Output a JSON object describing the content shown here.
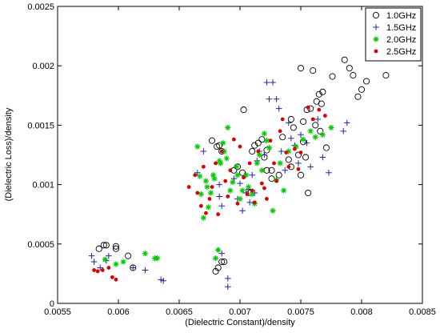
{
  "chart_data": {
    "type": "scatter",
    "title": "",
    "xlabel": "(Dielectric Constant)/density",
    "ylabel": "(Dielectric Loss)/density",
    "xlim": [
      0.0055,
      0.0085
    ],
    "ylim": [
      0,
      0.0025
    ],
    "x_ticks": [
      0.0055,
      0.006,
      0.0065,
      0.007,
      0.0075,
      0.008,
      0.0085
    ],
    "x_tick_labels": [
      "0.0055",
      "0.006",
      "0.0065",
      "0.007",
      "0.0075",
      "0.008",
      "0.0085"
    ],
    "y_ticks": [
      0,
      0.0005,
      0.001,
      0.0015,
      0.002,
      0.0025
    ],
    "y_tick_labels": [
      "0",
      "0.0005",
      "0.001",
      "0.0015",
      "0.002",
      "0.0025"
    ],
    "grid": false,
    "legend_position": "top-right",
    "series": [
      {
        "name": "1.0GHz",
        "marker": "circle-open",
        "color": "#000000",
        "x": [
          0.00584,
          0.00588,
          0.0059,
          0.00598,
          0.00598,
          0.00608,
          0.00612,
          0.00677,
          0.00681,
          0.00683,
          0.00685,
          0.0068,
          0.00687,
          0.00685,
          0.00682,
          0.00698,
          0.00695,
          0.00703,
          0.00702,
          0.0071,
          0.00708,
          0.00712,
          0.00715,
          0.00718,
          0.00722,
          0.0072,
          0.00722,
          0.00726,
          0.00726,
          0.00732,
          0.00735,
          0.00742,
          0.0074,
          0.00744,
          0.00742,
          0.00748,
          0.0075,
          0.00754,
          0.00756,
          0.00752,
          0.00758,
          0.00755,
          0.00752,
          0.0075,
          0.0076,
          0.00763,
          0.00762,
          0.00765,
          0.00766,
          0.00767,
          0.00768,
          0.00771,
          0.00776,
          0.00786,
          0.0079,
          0.00793,
          0.00797,
          0.008,
          0.00804,
          0.0082
        ],
        "y": [
          0.00046,
          0.00049,
          0.00049,
          0.00048,
          0.00046,
          0.0004,
          0.0003,
          0.00137,
          0.00132,
          0.00133,
          0.00128,
          0.00027,
          0.00035,
          0.00035,
          0.0003,
          0.00115,
          0.00112,
          0.00163,
          0.0011,
          0.00128,
          0.00093,
          0.00133,
          0.00135,
          0.00138,
          0.00129,
          0.00123,
          0.00112,
          0.00112,
          0.00105,
          0.00108,
          0.0014,
          0.00155,
          0.00121,
          0.00148,
          0.00115,
          0.00125,
          0.00108,
          0.00123,
          0.00093,
          0.00136,
          0.00164,
          0.00163,
          0.00153,
          0.00198,
          0.00196,
          0.0017,
          0.0015,
          0.00176,
          0.00145,
          0.00168,
          0.00178,
          0.00131,
          0.00191,
          0.00205,
          0.00198,
          0.00192,
          0.00174,
          0.0018,
          0.00187,
          0.00192
        ]
      },
      {
        "name": "1.5GHz",
        "marker": "plus",
        "color": "#2222aa",
        "x": [
          0.00578,
          0.0058,
          0.00585,
          0.0059,
          0.00592,
          0.00612,
          0.00622,
          0.00635,
          0.00637,
          0.00665,
          0.0067,
          0.00683,
          0.00685,
          0.00683,
          0.0069,
          0.0069,
          0.00685,
          0.00695,
          0.00698,
          0.007,
          0.00702,
          0.00705,
          0.00707,
          0.00708,
          0.0071,
          0.00712,
          0.00714,
          0.00716,
          0.0072,
          0.00722,
          0.00724,
          0.00727,
          0.0073,
          0.00732,
          0.00734,
          0.00737,
          0.0074,
          0.00742,
          0.00745,
          0.00748,
          0.0075,
          0.00755,
          0.00758,
          0.00764,
          0.00768,
          0.00773,
          0.00785,
          0.00788
        ],
        "y": [
          0.0004,
          0.00035,
          0.0003,
          0.00036,
          0.0004,
          0.0003,
          0.00028,
          0.0002,
          0.00019,
          0.0011,
          0.00128,
          0.001,
          0.00082,
          0.0009,
          0.00014,
          0.00021,
          0.00042,
          0.00105,
          0.00088,
          0.00101,
          0.00078,
          0.00093,
          0.00096,
          0.00085,
          0.00108,
          0.00093,
          0.0012,
          0.00128,
          0.00125,
          0.00186,
          0.00172,
          0.00186,
          0.00172,
          0.00164,
          0.00128,
          0.00112,
          0.00152,
          0.00139,
          0.00133,
          0.00118,
          0.00142,
          0.00135,
          0.00115,
          0.00155,
          0.00123,
          0.0011,
          0.00145,
          0.00152
        ]
      },
      {
        "name": "2.0GHz",
        "marker": "asterisk",
        "color": "#00cc00",
        "x": [
          0.00589,
          0.00598,
          0.00604,
          0.00622,
          0.0063,
          0.00632,
          0.00665,
          0.00667,
          0.00668,
          0.0067,
          0.00672,
          0.00673,
          0.00674,
          0.00676,
          0.00678,
          0.00679,
          0.0068,
          0.00682,
          0.00683,
          0.00684,
          0.00686,
          0.00687,
          0.00689,
          0.0069,
          0.00692,
          0.00694,
          0.00697,
          0.00698,
          0.007,
          0.00702,
          0.00705,
          0.00707,
          0.0071,
          0.00712,
          0.00714,
          0.00716,
          0.00718,
          0.0072,
          0.00722,
          0.00724,
          0.00727,
          0.0073,
          0.00733,
          0.00736,
          0.0074,
          0.00746,
          0.00752,
          0.00758,
          0.00762,
          0.00768,
          0.00775
        ],
        "y": [
          0.00037,
          0.00033,
          0.00035,
          0.00042,
          0.00038,
          0.00038,
          0.00132,
          0.00107,
          0.00092,
          0.00072,
          0.00103,
          0.00098,
          0.00081,
          0.00093,
          0.00108,
          0.00105,
          0.00038,
          0.00045,
          0.0012,
          0.00118,
          0.00135,
          0.00128,
          0.00122,
          0.00148,
          0.00095,
          0.00102,
          0.00115,
          0.00108,
          0.00088,
          0.00095,
          0.00108,
          0.00098,
          0.00092,
          0.00084,
          0.00118,
          0.00125,
          0.00112,
          0.00143,
          0.00137,
          0.00131,
          0.00078,
          0.00104,
          0.00118,
          0.00095,
          0.00128,
          0.00132,
          0.00138,
          0.00145,
          0.0014,
          0.00142,
          0.00148
        ]
      },
      {
        "name": "2.5GHz",
        "marker": "dot",
        "color": "#dd0000",
        "x": [
          0.0058,
          0.00583,
          0.00587,
          0.00592,
          0.00595,
          0.00598,
          0.00658,
          0.00663,
          0.00665,
          0.00668,
          0.0067,
          0.00672,
          0.00675,
          0.00677,
          0.0068,
          0.00682,
          0.00685,
          0.00688,
          0.0069,
          0.00692,
          0.00695,
          0.00698,
          0.007,
          0.00703,
          0.00706,
          0.00708,
          0.0071,
          0.00712,
          0.00715,
          0.00718,
          0.0072,
          0.00722,
          0.00725,
          0.00728,
          0.0073,
          0.00733,
          0.00735,
          0.00738,
          0.0074,
          0.00745,
          0.00748,
          0.0075,
          0.00756,
          0.0076,
          0.00765,
          0.0077
        ],
        "y": [
          0.00028,
          0.00027,
          0.00028,
          0.0003,
          0.00022,
          0.0002,
          0.00098,
          0.00108,
          0.00093,
          0.00082,
          0.00115,
          0.00076,
          0.00088,
          0.00098,
          0.00118,
          0.00075,
          0.00128,
          0.00103,
          0.0009,
          0.00112,
          0.00138,
          0.00084,
          0.00132,
          0.00106,
          0.00092,
          0.00118,
          0.00095,
          0.00085,
          0.00128,
          0.00101,
          0.00097,
          0.00088,
          0.00137,
          0.00118,
          0.00103,
          0.00145,
          0.00155,
          0.00127,
          0.00115,
          0.0013,
          0.00113,
          0.00127,
          0.00165,
          0.00155,
          0.00163,
          0.00158
        ]
      }
    ]
  }
}
